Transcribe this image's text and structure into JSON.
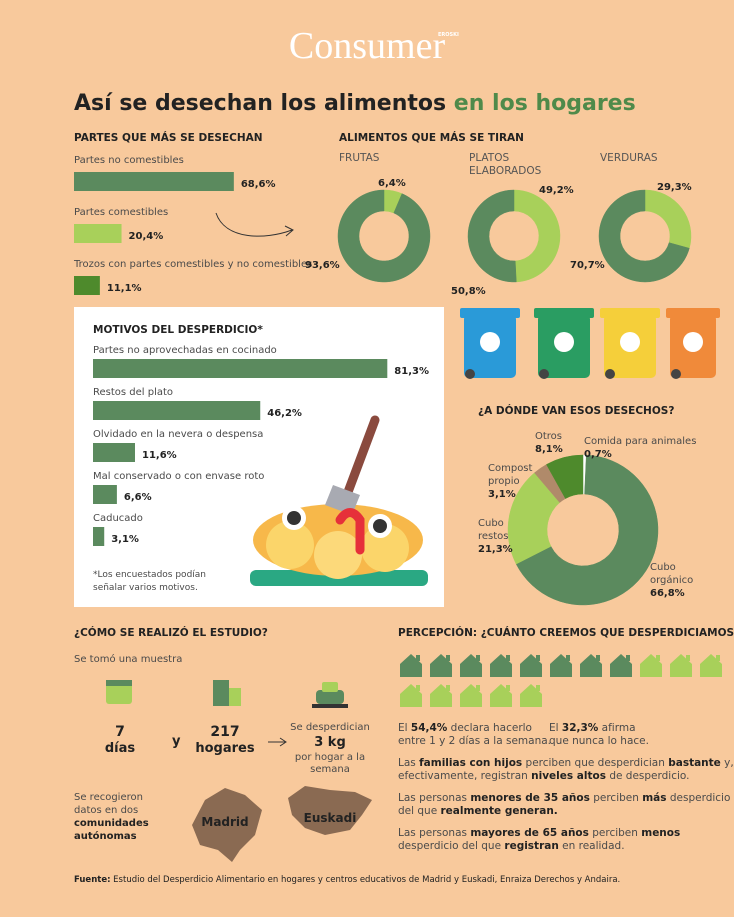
{
  "header": {
    "brand": "Consumer",
    "brand_tag": "EROSKI",
    "title": [
      "Así se desechan los alimentos",
      "en los hogares"
    ]
  },
  "parts_chart": {
    "type": "bar",
    "title": "PARTES QUE MÁS SE DESECHAN",
    "categories": [
      "Partes no comestibles",
      "Partes comestibles",
      "Trozos con partes comestibles y no comestibles"
    ],
    "values": [
      68.6,
      20.4,
      11.1
    ],
    "value_labels": [
      "68,6%",
      "20,4%",
      "11,1%"
    ],
    "colors": [
      "#5b8a5e",
      "#a8d05a",
      "#4e8a2c"
    ]
  },
  "foods_chart": {
    "type": "donut",
    "title": "ALIMENTOS QUE MÁS SE TIRAN",
    "colors": [
      "#a8d05a",
      "#5b8a5e"
    ],
    "charts": [
      {
        "name": [
          "FRUTAS"
        ],
        "values": [
          6.4,
          93.6
        ],
        "value_labels": [
          "6,4%",
          "93,6%"
        ]
      },
      {
        "name": [
          "PLATOS",
          "ELABORADOS"
        ],
        "values": [
          49.2,
          50.8
        ],
        "value_labels": [
          "49,2%",
          "50,8%"
        ]
      },
      {
        "name": [
          "VERDURAS"
        ],
        "values": [
          29.3,
          70.7
        ],
        "value_labels": [
          "29,3%",
          "70,7%"
        ]
      }
    ]
  },
  "motives_chart": {
    "type": "bar",
    "title": "MOTIVOS DEL DESPERDICIO*",
    "categories": [
      "Partes no aprovechadas en cocinado",
      "Restos del plato",
      "Olvidado en la nevera o despensa",
      "Mal conservado o con envase roto",
      "Caducado"
    ],
    "values": [
      81.3,
      46.2,
      11.6,
      6.6,
      3.1
    ],
    "value_labels": [
      "81,3%",
      "46,2%",
      "11,6%",
      "6,6%",
      "3,1%"
    ],
    "color": "#5b8a5e",
    "note": [
      "*Los encuestados podían",
      "señalar varios motivos."
    ]
  },
  "destination_chart": {
    "type": "donut",
    "title": "¿A DÓNDE VAN ESOS DESECHOS?",
    "categories": [
      [
        "Comida para animales"
      ],
      [
        "Cubo",
        "orgánico"
      ],
      [
        "Cubo",
        "restos"
      ],
      [
        "Compost",
        "propio"
      ],
      [
        "Otros"
      ]
    ],
    "values": [
      0.7,
      66.8,
      21.3,
      3.1,
      8.1
    ],
    "value_labels": [
      "0,7%",
      "66,8%",
      "21,3%",
      "3,1%",
      "8,1%"
    ],
    "colors": [
      "#ffffff",
      "#5b8a5e",
      "#a8d05a",
      "#b08a6a",
      "#4e8a2c"
    ]
  },
  "study": {
    "title": "¿CÓMO SE REALIZÓ EL ESTUDIO?",
    "intro": "Se tomó una muestra",
    "days": "7",
    "days_unit": "días",
    "and": "y",
    "homes": "217",
    "homes_unit": "hogares",
    "waste": [
      "Se desperdician",
      "3 kg",
      "por hogar a la",
      "semana"
    ],
    "regions_text": [
      "Se recogieron",
      "datos en dos",
      "comunidades",
      "autónomas"
    ],
    "regions": [
      "Madrid",
      "Euskadi"
    ]
  },
  "perception": {
    "title": "PERCEPCIÓN: ¿CUÁNTO CREEMOS QUE DESPERDICIAMOS?",
    "paragraphs": [
      [
        [
          "El ",
          "54,4%",
          " declara hacerlo"
        ],
        [
          "entre 1 y 2 días a la semana."
        ]
      ],
      [
        [
          "El ",
          "32,3%",
          " afirma"
        ],
        [
          "que nunca lo hace."
        ]
      ],
      [
        [
          "Las ",
          "familias con hijos",
          " perciben que desperdician ",
          "bastante",
          " y,"
        ],
        [
          "efectivamente, registran ",
          "niveles altos",
          " de desperdicio."
        ]
      ],
      [
        [
          "Las personas ",
          "menores de 35 años",
          " perciben ",
          "más",
          " desperdicio"
        ],
        [
          "del que ",
          "realmente generan."
        ]
      ],
      [
        [
          "Las personas ",
          "mayores de 65 años",
          " perciben ",
          "menos"
        ],
        [
          "desperdicio del que ",
          "registran",
          " en realidad."
        ]
      ]
    ]
  },
  "footer": [
    "Fuente:",
    " Estudio del Desperdicio Alimentario en hogares y centros educativos de Madrid y Euskadi, Enraiza Derechos y Andaira."
  ]
}
